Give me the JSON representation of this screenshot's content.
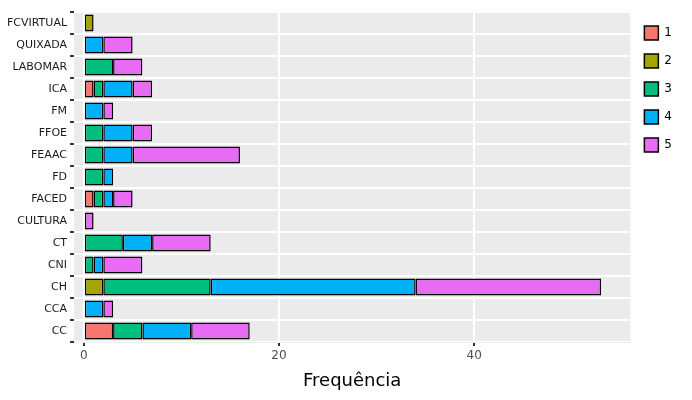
{
  "chart_data": {
    "type": "bar",
    "orientation": "horizontal",
    "stacked": true,
    "x_label": "Frequência",
    "categories": [
      "FCVIRTUAL",
      "QUIXADA",
      "LABOMAR",
      "ICA",
      "FM",
      "FFOE",
      "FEAAC",
      "FD",
      "FACED",
      "CULTURA",
      "CT",
      "CNI",
      "CH",
      "CCA",
      "CC"
    ],
    "series": [
      {
        "name": "1",
        "color": "#F8766D",
        "values": [
          0,
          0,
          0,
          1,
          0,
          0,
          0,
          0,
          1,
          0,
          0,
          0,
          0,
          0,
          3
        ]
      },
      {
        "name": "2",
        "color": "#A3A500",
        "values": [
          1,
          0,
          0,
          0,
          0,
          0,
          0,
          0,
          0,
          0,
          0,
          0,
          2,
          0,
          0
        ]
      },
      {
        "name": "3",
        "color": "#00BF7D",
        "values": [
          0,
          0,
          3,
          1,
          0,
          2,
          2,
          2,
          1,
          0,
          4,
          1,
          11,
          0,
          3
        ]
      },
      {
        "name": "4",
        "color": "#00B0F6",
        "values": [
          0,
          2,
          0,
          3,
          2,
          3,
          3,
          1,
          1,
          0,
          3,
          1,
          21,
          2,
          5
        ]
      },
      {
        "name": "5",
        "color": "#E76BF3",
        "values": [
          0,
          3,
          3,
          2,
          1,
          2,
          11,
          0,
          2,
          1,
          6,
          4,
          19,
          1,
          6
        ]
      }
    ],
    "xlim": [
      -1,
      56
    ],
    "xticks": [
      0,
      20,
      40
    ],
    "grid": true,
    "legend": "right"
  }
}
